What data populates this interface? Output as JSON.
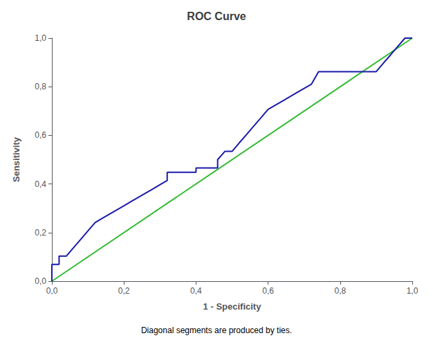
{
  "chart_data": {
    "type": "line",
    "title": "ROC Curve",
    "xlabel": "1 - Specificity",
    "ylabel": "Sensitivity",
    "footnote": "Diagonal segments are produced by ties.",
    "xlim": [
      0.0,
      1.0
    ],
    "ylim": [
      0.0,
      1.0
    ],
    "xticks": [
      {
        "value": 0.0,
        "label": "0,0"
      },
      {
        "value": 0.2,
        "label": "0,2"
      },
      {
        "value": 0.4,
        "label": "0,4"
      },
      {
        "value": 0.6,
        "label": "0,6"
      },
      {
        "value": 0.8,
        "label": "0,8"
      },
      {
        "value": 1.0,
        "label": "1,0"
      }
    ],
    "yticks": [
      {
        "value": 0.0,
        "label": "0,0"
      },
      {
        "value": 0.2,
        "label": "0,2"
      },
      {
        "value": 0.4,
        "label": "0,4"
      },
      {
        "value": 0.6,
        "label": "0,6"
      },
      {
        "value": 0.8,
        "label": "0,8"
      },
      {
        "value": 1.0,
        "label": "1,0"
      }
    ],
    "grid": false,
    "series": [
      {
        "color": "#33bb33",
        "x": [
          0,
          1
        ],
        "values": [
          0,
          1
        ]
      },
      {
        "color": "#1a1aaa",
        "x": [
          0.0,
          0.0,
          0.02,
          0.02,
          0.04,
          0.06,
          0.08,
          0.1,
          0.12,
          0.14,
          0.16,
          0.18,
          0.2,
          0.22,
          0.24,
          0.26,
          0.28,
          0.3,
          0.32,
          0.32,
          0.34,
          0.36,
          0.38,
          0.4,
          0.4,
          0.42,
          0.44,
          0.46,
          0.46,
          0.48,
          0.5,
          0.52,
          0.54,
          0.56,
          0.58,
          0.6,
          0.62,
          0.64,
          0.68,
          0.7,
          0.72,
          0.74,
          0.76,
          0.9,
          0.92,
          0.94,
          0.96,
          0.98,
          1.0
        ],
        "values": [
          0.0,
          0.069,
          0.069,
          0.103,
          0.103,
          0.138,
          0.172,
          0.207,
          0.241,
          0.259,
          0.276,
          0.293,
          0.31,
          0.328,
          0.345,
          0.362,
          0.379,
          0.397,
          0.414,
          0.448,
          0.448,
          0.448,
          0.448,
          0.448,
          0.466,
          0.466,
          0.466,
          0.466,
          0.5,
          0.534,
          0.534,
          0.569,
          0.603,
          0.638,
          0.672,
          0.707,
          0.724,
          0.741,
          0.776,
          0.793,
          0.81,
          0.862,
          0.862,
          0.862,
          0.897,
          0.931,
          0.966,
          1.0,
          1.0
        ]
      }
    ]
  }
}
